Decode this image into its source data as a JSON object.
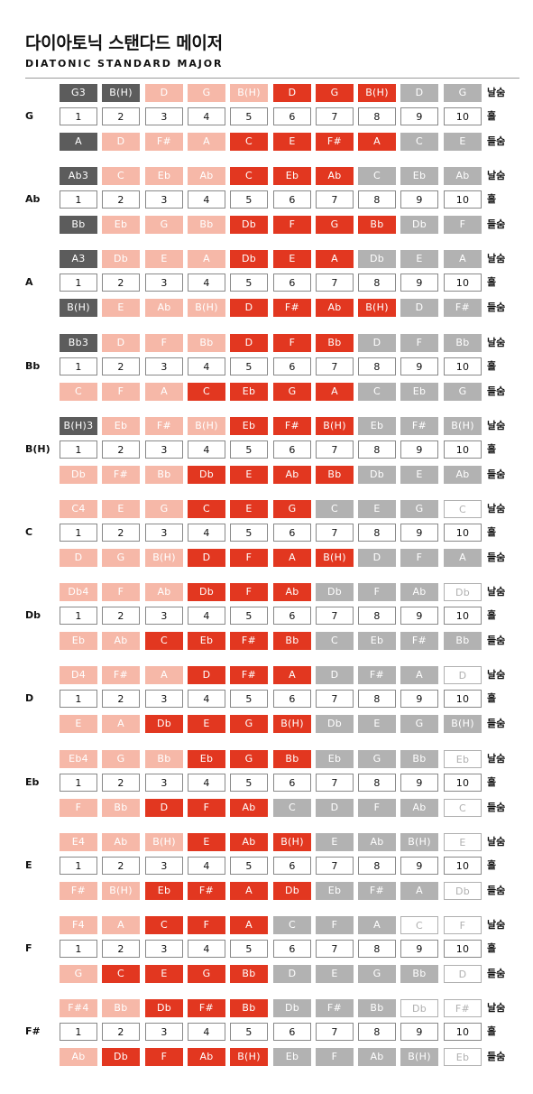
{
  "title": "다이아토닉 스탠다드 메이저",
  "subtitle": "DIATONIC STANDARD MAJOR",
  "row_labels": {
    "blow": "날숨",
    "hole": "홀",
    "draw": "들숨"
  },
  "holes": [
    "1",
    "2",
    "3",
    "4",
    "5",
    "6",
    "7",
    "8",
    "9",
    "10"
  ],
  "colors": {
    "dark": "#5c5c5c",
    "pink": "#f6b8a8",
    "red": "#e23720",
    "gray": "#b2b2b2",
    "white": "#ffffff"
  },
  "keys": [
    {
      "key": "G",
      "blow": [
        "G3",
        "B(H)",
        "D",
        "G",
        "B(H)",
        "D",
        "G",
        "B(H)",
        "D",
        "G"
      ],
      "blow_style": [
        "d",
        "d",
        "p",
        "p",
        "p",
        "r",
        "r",
        "r",
        "g",
        "g"
      ],
      "draw": [
        "A",
        "D",
        "F#",
        "A",
        "C",
        "E",
        "F#",
        "A",
        "C",
        "E"
      ],
      "draw_style": [
        "d",
        "p",
        "p",
        "p",
        "r",
        "r",
        "r",
        "r",
        "g",
        "g"
      ]
    },
    {
      "key": "Ab",
      "blow": [
        "Ab3",
        "C",
        "Eb",
        "Ab",
        "C",
        "Eb",
        "Ab",
        "C",
        "Eb",
        "Ab"
      ],
      "blow_style": [
        "d",
        "p",
        "p",
        "p",
        "r",
        "r",
        "r",
        "g",
        "g",
        "g"
      ],
      "draw": [
        "Bb",
        "Eb",
        "G",
        "Bb",
        "Db",
        "F",
        "G",
        "Bb",
        "Db",
        "F"
      ],
      "draw_style": [
        "d",
        "p",
        "p",
        "p",
        "r",
        "r",
        "r",
        "r",
        "g",
        "g"
      ]
    },
    {
      "key": "A",
      "blow": [
        "A3",
        "Db",
        "E",
        "A",
        "Db",
        "E",
        "A",
        "Db",
        "E",
        "A"
      ],
      "blow_style": [
        "d",
        "p",
        "p",
        "p",
        "r",
        "r",
        "r",
        "g",
        "g",
        "g"
      ],
      "draw": [
        "B(H)",
        "E",
        "Ab",
        "B(H)",
        "D",
        "F#",
        "Ab",
        "B(H)",
        "D",
        "F#"
      ],
      "draw_style": [
        "d",
        "p",
        "p",
        "p",
        "r",
        "r",
        "r",
        "r",
        "g",
        "g"
      ]
    },
    {
      "key": "Bb",
      "blow": [
        "Bb3",
        "D",
        "F",
        "Bb",
        "D",
        "F",
        "Bb",
        "D",
        "F",
        "Bb"
      ],
      "blow_style": [
        "d",
        "p",
        "p",
        "p",
        "r",
        "r",
        "r",
        "g",
        "g",
        "g"
      ],
      "draw": [
        "C",
        "F",
        "A",
        "C",
        "Eb",
        "G",
        "A",
        "C",
        "Eb",
        "G"
      ],
      "draw_style": [
        "p",
        "p",
        "p",
        "r",
        "r",
        "r",
        "r",
        "g",
        "g",
        "g"
      ]
    },
    {
      "key": "B(H)",
      "blow": [
        "B(H)3",
        "Eb",
        "F#",
        "B(H)",
        "Eb",
        "F#",
        "B(H)",
        "Eb",
        "F#",
        "B(H)"
      ],
      "blow_style": [
        "d",
        "p",
        "p",
        "p",
        "r",
        "r",
        "r",
        "g",
        "g",
        "g"
      ],
      "draw": [
        "Db",
        "F#",
        "Bb",
        "Db",
        "E",
        "Ab",
        "Bb",
        "Db",
        "E",
        "Ab"
      ],
      "draw_style": [
        "p",
        "p",
        "p",
        "r",
        "r",
        "r",
        "r",
        "g",
        "g",
        "g"
      ]
    },
    {
      "key": "C",
      "blow": [
        "C4",
        "E",
        "G",
        "C",
        "E",
        "G",
        "C",
        "E",
        "G",
        "C"
      ],
      "blow_style": [
        "p",
        "p",
        "p",
        "r",
        "r",
        "r",
        "g",
        "g",
        "g",
        "w"
      ],
      "draw": [
        "D",
        "G",
        "B(H)",
        "D",
        "F",
        "A",
        "B(H)",
        "D",
        "F",
        "A"
      ],
      "draw_style": [
        "p",
        "p",
        "p",
        "r",
        "r",
        "r",
        "r",
        "g",
        "g",
        "g"
      ]
    },
    {
      "key": "Db",
      "blow": [
        "Db4",
        "F",
        "Ab",
        "Db",
        "F",
        "Ab",
        "Db",
        "F",
        "Ab",
        "Db"
      ],
      "blow_style": [
        "p",
        "p",
        "p",
        "r",
        "r",
        "r",
        "g",
        "g",
        "g",
        "w"
      ],
      "draw": [
        "Eb",
        "Ab",
        "C",
        "Eb",
        "F#",
        "Bb",
        "C",
        "Eb",
        "F#",
        "Bb"
      ],
      "draw_style": [
        "p",
        "p",
        "r",
        "r",
        "r",
        "r",
        "g",
        "g",
        "g",
        "g"
      ]
    },
    {
      "key": "D",
      "blow": [
        "D4",
        "F#",
        "A",
        "D",
        "F#",
        "A",
        "D",
        "F#",
        "A",
        "D"
      ],
      "blow_style": [
        "p",
        "p",
        "p",
        "r",
        "r",
        "r",
        "g",
        "g",
        "g",
        "w"
      ],
      "draw": [
        "E",
        "A",
        "Db",
        "E",
        "G",
        "B(H)",
        "Db",
        "E",
        "G",
        "B(H)"
      ],
      "draw_style": [
        "p",
        "p",
        "r",
        "r",
        "r",
        "r",
        "g",
        "g",
        "g",
        "g"
      ]
    },
    {
      "key": "Eb",
      "blow": [
        "Eb4",
        "G",
        "Bb",
        "Eb",
        "G",
        "Bb",
        "Eb",
        "G",
        "Bb",
        "Eb"
      ],
      "blow_style": [
        "p",
        "p",
        "p",
        "r",
        "r",
        "r",
        "g",
        "g",
        "g",
        "w"
      ],
      "draw": [
        "F",
        "Bb",
        "D",
        "F",
        "Ab",
        "C",
        "D",
        "F",
        "Ab",
        "C"
      ],
      "draw_style": [
        "p",
        "p",
        "r",
        "r",
        "r",
        "g",
        "g",
        "g",
        "g",
        "w"
      ]
    },
    {
      "key": "E",
      "blow": [
        "E4",
        "Ab",
        "B(H)",
        "E",
        "Ab",
        "B(H)",
        "E",
        "Ab",
        "B(H)",
        "E"
      ],
      "blow_style": [
        "p",
        "p",
        "p",
        "r",
        "r",
        "r",
        "g",
        "g",
        "g",
        "w"
      ],
      "draw": [
        "F#",
        "B(H)",
        "Eb",
        "F#",
        "A",
        "Db",
        "Eb",
        "F#",
        "A",
        "Db"
      ],
      "draw_style": [
        "p",
        "p",
        "r",
        "r",
        "r",
        "r",
        "g",
        "g",
        "g",
        "w"
      ]
    },
    {
      "key": "F",
      "blow": [
        "F4",
        "A",
        "C",
        "F",
        "A",
        "C",
        "F",
        "A",
        "C",
        "F"
      ],
      "blow_style": [
        "p",
        "p",
        "r",
        "r",
        "r",
        "g",
        "g",
        "g",
        "w",
        "w"
      ],
      "draw": [
        "G",
        "C",
        "E",
        "G",
        "Bb",
        "D",
        "E",
        "G",
        "Bb",
        "D"
      ],
      "draw_style": [
        "p",
        "r",
        "r",
        "r",
        "r",
        "g",
        "g",
        "g",
        "g",
        "w"
      ]
    },
    {
      "key": "F#",
      "blow": [
        "F#4",
        "Bb",
        "Db",
        "F#",
        "Bb",
        "Db",
        "F#",
        "Bb",
        "Db",
        "F#"
      ],
      "blow_style": [
        "p",
        "p",
        "r",
        "r",
        "r",
        "g",
        "g",
        "g",
        "w",
        "w"
      ],
      "draw": [
        "Ab",
        "Db",
        "F",
        "Ab",
        "B(H)",
        "Eb",
        "F",
        "Ab",
        "B(H)",
        "Eb"
      ],
      "draw_style": [
        "p",
        "r",
        "r",
        "r",
        "r",
        "g",
        "g",
        "g",
        "g",
        "w"
      ]
    }
  ]
}
